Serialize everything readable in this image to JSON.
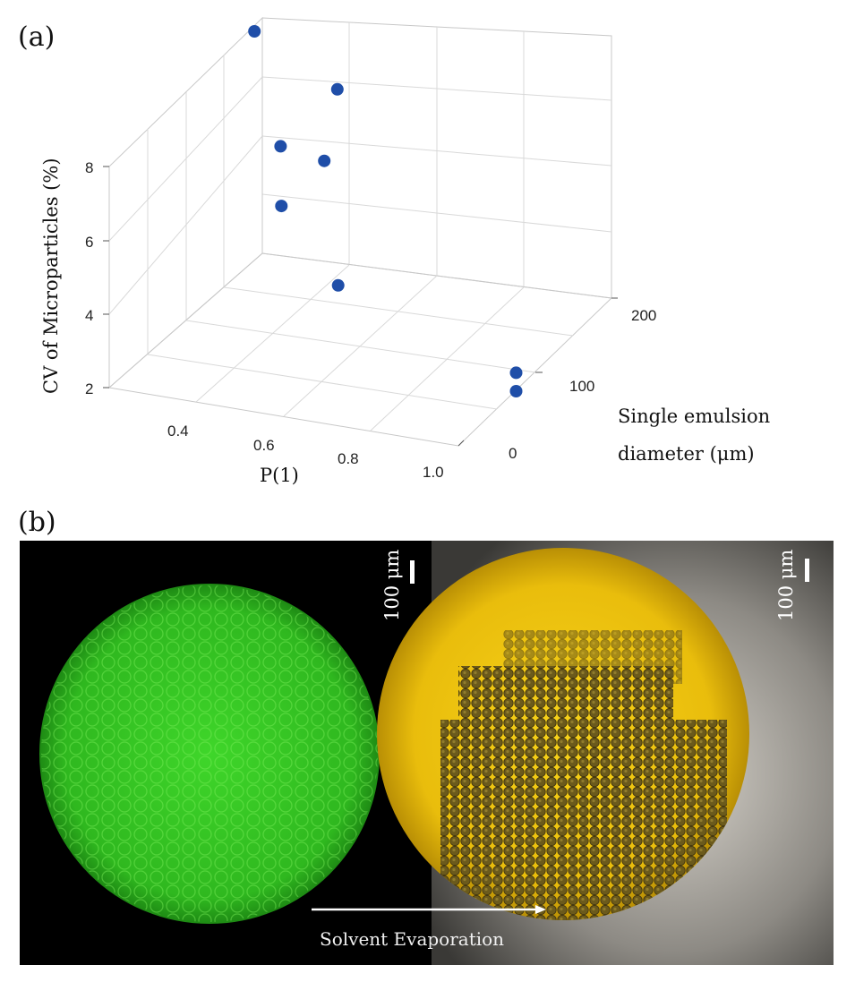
{
  "figure": {
    "panel_a_label": "(a)",
    "panel_b_label": "(b)"
  },
  "chart_data": {
    "type": "scatter",
    "projection": "3d",
    "xlabel": "P(1)",
    "ylabel": "Single emulsion diameter (μm)",
    "ylabel_line1": "Single emulsion",
    "ylabel_line2": "diameter (μm)",
    "zlabel": "CV of Microparticles (%)",
    "x_ticks": [
      "0.4",
      "0.6",
      "0.8",
      "1.0"
    ],
    "y_ticks": [
      "0",
      "100",
      "200"
    ],
    "z_ticks": [
      "2",
      "4",
      "6",
      "8"
    ],
    "marker_color": "#1f4ea8",
    "points": [
      {
        "x": 0.26,
        "y": 200,
        "z": 8.0
      },
      {
        "x": 0.45,
        "y": 200,
        "z": 6.8
      },
      {
        "x": 0.32,
        "y": 200,
        "z": 5.0
      },
      {
        "x": 0.42,
        "y": 200,
        "z": 4.8
      },
      {
        "x": 0.42,
        "y": 130,
        "z": 4.7
      },
      {
        "x": 0.55,
        "y": 130,
        "z": 2.8
      },
      {
        "x": 1.0,
        "y": 100,
        "z": 1.8
      },
      {
        "x": 1.0,
        "y": 100,
        "z": 1.3
      }
    ]
  },
  "micrograph": {
    "scale_left": "100 μm",
    "scale_right": "100 μm",
    "arrow_label": "Solvent Evaporation",
    "left_color": "#3fd62a",
    "right_color": "#f0c30f"
  }
}
